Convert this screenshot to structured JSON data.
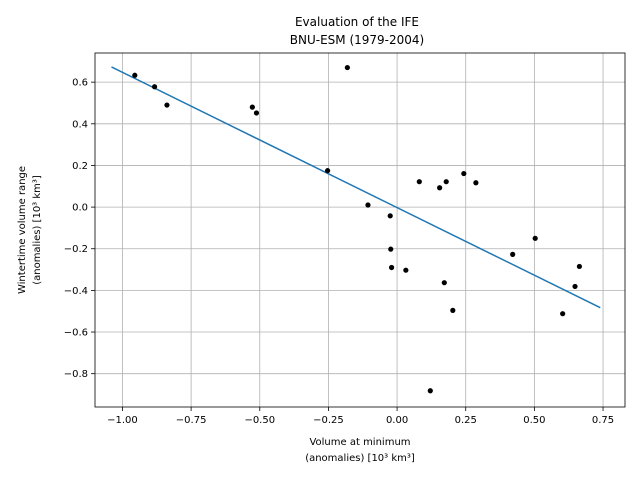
{
  "chart_data": {
    "type": "scatter",
    "title_lines": [
      "Evaluation of the IFE",
      "BNU-ESM (1979-2004)"
    ],
    "xlabel_lines": [
      "Volume at minimum",
      "(anomalies) [10³ km³]"
    ],
    "ylabel_lines": [
      "Wintertime volume range",
      "(anomalies) [10³ km³]"
    ],
    "xlim": [
      -1.1,
      0.83
    ],
    "ylim": [
      -0.96,
      0.74
    ],
    "xticks": [
      -1.0,
      -0.75,
      -0.5,
      -0.25,
      0.0,
      0.25,
      0.5,
      0.75
    ],
    "xtick_labels": [
      "−1.00",
      "−0.75",
      "−0.50",
      "−0.25",
      "0.00",
      "0.25",
      "0.50",
      "0.75"
    ],
    "yticks": [
      -0.8,
      -0.6,
      -0.4,
      -0.2,
      0.0,
      0.2,
      0.4,
      0.6
    ],
    "ytick_labels": [
      "−0.8",
      "−0.6",
      "−0.4",
      "−0.2",
      "0.0",
      "0.2",
      "0.4",
      "0.6"
    ],
    "grid": true,
    "points": [
      {
        "x": -0.955,
        "y": 0.633
      },
      {
        "x": -0.883,
        "y": 0.578
      },
      {
        "x": -0.838,
        "y": 0.49
      },
      {
        "x": -0.527,
        "y": 0.48
      },
      {
        "x": -0.512,
        "y": 0.452
      },
      {
        "x": -0.181,
        "y": 0.67
      },
      {
        "x": -0.253,
        "y": 0.175
      },
      {
        "x": -0.106,
        "y": 0.01
      },
      {
        "x": -0.025,
        "y": -0.042
      },
      {
        "x": -0.023,
        "y": -0.202
      },
      {
        "x": -0.02,
        "y": -0.29
      },
      {
        "x": 0.032,
        "y": -0.303
      },
      {
        "x": 0.081,
        "y": 0.122
      },
      {
        "x": 0.155,
        "y": 0.093
      },
      {
        "x": 0.179,
        "y": 0.122
      },
      {
        "x": 0.243,
        "y": 0.161
      },
      {
        "x": 0.287,
        "y": 0.117
      },
      {
        "x": 0.172,
        "y": -0.363
      },
      {
        "x": 0.203,
        "y": -0.496
      },
      {
        "x": 0.121,
        "y": -0.882
      },
      {
        "x": 0.421,
        "y": -0.227
      },
      {
        "x": 0.503,
        "y": -0.15
      },
      {
        "x": 0.603,
        "y": -0.512
      },
      {
        "x": 0.648,
        "y": -0.381
      },
      {
        "x": 0.664,
        "y": -0.285
      }
    ],
    "fit_line": {
      "x": [
        -1.04,
        0.74
      ],
      "y": [
        0.673,
        -0.483
      ]
    },
    "colors": {
      "points": "#000000",
      "fit_line": "#1f77b4"
    }
  }
}
